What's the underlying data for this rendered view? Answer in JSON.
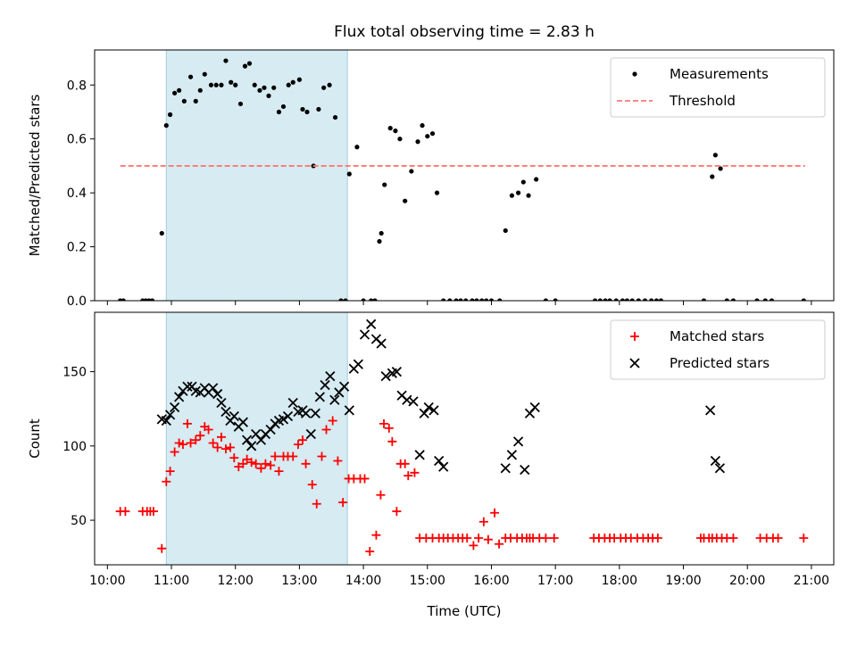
{
  "figure": {
    "title": "Flux total observing time = 2.83 h"
  },
  "chart_data": [
    {
      "type": "scatter",
      "title": "Flux total observing time = 2.83 h",
      "xlabel": "",
      "ylabel": "Matched/Predicted stars",
      "xlim": [
        9.8,
        21.35
      ],
      "ylim": [
        0,
        0.93
      ],
      "yticks": [
        0.0,
        0.2,
        0.4,
        0.6,
        0.8
      ],
      "ytick_labels": [
        "0.0",
        "0.2",
        "0.4",
        "0.6",
        "0.8"
      ],
      "shaded_interval": [
        10.92,
        13.75
      ],
      "legend": "top-right",
      "series": [
        {
          "name": "Measurements",
          "color": "#000000",
          "marker": "dot",
          "x": [
            10.2,
            10.25,
            10.55,
            10.6,
            10.65,
            10.7,
            10.85,
            10.92,
            10.98,
            11.05,
            11.12,
            11.2,
            11.3,
            11.38,
            11.45,
            11.52,
            11.62,
            11.7,
            11.78,
            11.85,
            11.93,
            12.0,
            12.08,
            12.15,
            12.22,
            12.3,
            12.38,
            12.45,
            12.52,
            12.6,
            12.68,
            12.75,
            12.83,
            12.9,
            13.0,
            13.05,
            13.12,
            13.22,
            13.3,
            13.38,
            13.47,
            13.56,
            13.65,
            13.72,
            13.78,
            13.9,
            14.0,
            14.12,
            14.18,
            14.25,
            14.28,
            14.33,
            14.42,
            14.5,
            14.57,
            14.65,
            14.75,
            14.85,
            14.92,
            15.0,
            15.08,
            15.15,
            15.25,
            15.35,
            15.45,
            15.52,
            15.6,
            15.7,
            15.77,
            15.85,
            15.92,
            16.0,
            16.13,
            16.22,
            16.32,
            16.42,
            16.5,
            16.58,
            16.7,
            16.85,
            17.0,
            17.62,
            17.7,
            17.78,
            17.85,
            17.95,
            18.05,
            18.12,
            18.2,
            18.3,
            18.4,
            18.5,
            18.58,
            18.65,
            19.32,
            19.45,
            19.5,
            19.58,
            19.68,
            19.78,
            20.15,
            20.28,
            20.38,
            20.88
          ],
          "y": [
            0,
            0,
            0,
            0,
            0,
            0,
            0.25,
            0.65,
            0.69,
            0.77,
            0.78,
            0.74,
            0.83,
            0.74,
            0.78,
            0.84,
            0.8,
            0.8,
            0.8,
            0.89,
            0.81,
            0.8,
            0.73,
            0.87,
            0.88,
            0.8,
            0.78,
            0.79,
            0.76,
            0.79,
            0.7,
            0.72,
            0.8,
            0.81,
            0.82,
            0.71,
            0.7,
            0.5,
            0.71,
            0.79,
            0.8,
            0.68,
            0,
            0,
            0.47,
            0.57,
            0,
            0,
            0,
            0.22,
            0.25,
            0.43,
            0.64,
            0.63,
            0.6,
            0.37,
            0.48,
            0.59,
            0.65,
            0.61,
            0.62,
            0.4,
            0,
            0,
            0,
            0,
            0,
            0,
            0,
            0,
            0,
            0,
            0,
            0.26,
            0.39,
            0.4,
            0.44,
            0.39,
            0.45,
            0,
            0,
            0,
            0,
            0,
            0,
            0,
            0,
            0,
            0,
            0,
            0,
            0,
            0,
            0,
            0,
            0.46,
            0.54,
            0.49,
            0,
            0,
            0,
            0,
            0,
            0
          ]
        },
        {
          "name": "Threshold",
          "color": "#ff7777",
          "style": "dashed",
          "x": [
            10.2,
            20.9
          ],
          "y": [
            0.5,
            0.5
          ]
        }
      ]
    },
    {
      "type": "scatter",
      "title": "",
      "xlabel": "Time (UTC)",
      "ylabel": "Count",
      "xlim": [
        9.8,
        21.35
      ],
      "ylim": [
        20,
        190
      ],
      "yticks": [
        50,
        100,
        150
      ],
      "ytick_labels": [
        "50",
        "100",
        "150"
      ],
      "xticks": [
        10,
        11,
        12,
        13,
        14,
        15,
        16,
        17,
        18,
        19,
        20,
        21
      ],
      "xtick_labels": [
        "10:00",
        "11:00",
        "12:00",
        "13:00",
        "14:00",
        "15:00",
        "16:00",
        "17:00",
        "18:00",
        "19:00",
        "20:00",
        "21:00"
      ],
      "shaded_interval": [
        10.92,
        13.75
      ],
      "legend": "top-right",
      "series": [
        {
          "name": "Matched stars",
          "color": "#ff0000",
          "marker": "plus",
          "x": [
            10.2,
            10.28,
            10.55,
            10.62,
            10.67,
            10.72,
            10.85,
            10.92,
            10.98,
            11.05,
            11.12,
            11.18,
            11.25,
            11.3,
            11.38,
            11.45,
            11.52,
            11.58,
            11.65,
            11.72,
            11.78,
            11.85,
            11.92,
            11.98,
            12.05,
            12.12,
            12.18,
            12.25,
            12.32,
            12.4,
            12.47,
            12.55,
            12.62,
            12.68,
            12.75,
            12.82,
            12.9,
            12.98,
            13.05,
            13.1,
            13.2,
            13.27,
            13.35,
            13.42,
            13.52,
            13.6,
            13.68,
            13.77,
            13.85,
            13.95,
            14.02,
            14.1,
            14.2,
            14.27,
            14.32,
            14.4,
            14.45,
            14.52,
            14.58,
            14.65,
            14.7,
            14.8,
            14.88,
            14.98,
            15.08,
            15.18,
            15.25,
            15.32,
            15.4,
            15.48,
            15.55,
            15.62,
            15.72,
            15.8,
            15.88,
            15.95,
            16.05,
            16.12,
            16.22,
            16.3,
            16.4,
            16.48,
            16.55,
            16.6,
            16.65,
            16.75,
            16.85,
            16.98,
            17.6,
            17.68,
            17.77,
            17.85,
            17.92,
            18.02,
            18.1,
            18.18,
            18.28,
            18.37,
            18.45,
            18.52,
            18.6,
            19.27,
            19.32,
            19.4,
            19.45,
            19.52,
            19.6,
            19.68,
            19.78,
            20.2,
            20.3,
            20.4,
            20.48,
            20.88
          ],
          "y": [
            56,
            56,
            56,
            56,
            56,
            56,
            31,
            76,
            83,
            96,
            102,
            101,
            115,
            102,
            104,
            107,
            113,
            111,
            102,
            99,
            106,
            98,
            99,
            92,
            86,
            88,
            91,
            89,
            88,
            85,
            88,
            87,
            93,
            83,
            93,
            93,
            93,
            101,
            104,
            88,
            74,
            61,
            93,
            111,
            117,
            90,
            62,
            78,
            78,
            78,
            78,
            29,
            40,
            67,
            115,
            112,
            103,
            56,
            88,
            88,
            80,
            82,
            38,
            38,
            38,
            38,
            38,
            38,
            38,
            38,
            38,
            38,
            33,
            38,
            49,
            37,
            55,
            34,
            38,
            38,
            38,
            38,
            38,
            38,
            38,
            38,
            38,
            38,
            38,
            38,
            38,
            38,
            38,
            38,
            38,
            38,
            38,
            38,
            38,
            38,
            38,
            38,
            38,
            38,
            38,
            38,
            38,
            38,
            38,
            38,
            38,
            38,
            38,
            38
          ],
          "y_note": ""
        },
        {
          "name": "Predicted stars",
          "color": "#000000",
          "marker": "x",
          "x": [
            10.85,
            10.92,
            10.98,
            11.05,
            11.12,
            11.18,
            11.25,
            11.32,
            11.38,
            11.45,
            11.52,
            11.58,
            11.65,
            11.72,
            11.78,
            11.85,
            11.92,
            11.98,
            12.05,
            12.12,
            12.18,
            12.25,
            12.32,
            12.4,
            12.47,
            12.55,
            12.62,
            12.68,
            12.75,
            12.82,
            12.9,
            12.98,
            13.05,
            13.1,
            13.18,
            13.25,
            13.32,
            13.4,
            13.48,
            13.55,
            13.62,
            13.7,
            13.78,
            13.85,
            13.92,
            14.02,
            14.12,
            14.2,
            14.28,
            14.35,
            14.45,
            14.52,
            14.6,
            14.68,
            14.78,
            14.88,
            14.95,
            15.02,
            15.1,
            15.18,
            15.25,
            16.22,
            16.32,
            16.42,
            16.52,
            16.6,
            16.68,
            19.42,
            19.5,
            19.57
          ],
          "y": [
            118,
            117,
            121,
            126,
            133,
            137,
            140,
            140,
            137,
            136,
            139,
            136,
            139,
            135,
            129,
            123,
            117,
            120,
            113,
            116,
            104,
            100,
            108,
            104,
            108,
            111,
            115,
            117,
            118,
            120,
            129,
            123,
            124,
            122,
            108,
            122,
            133,
            141,
            147,
            131,
            136,
            140,
            124,
            152,
            155,
            175,
            182,
            172,
            169,
            147,
            149,
            150,
            134,
            131,
            130,
            94,
            122,
            126,
            124,
            90,
            86,
            85,
            94,
            103,
            84,
            122,
            126,
            124,
            90,
            85
          ]
        }
      ]
    }
  ]
}
